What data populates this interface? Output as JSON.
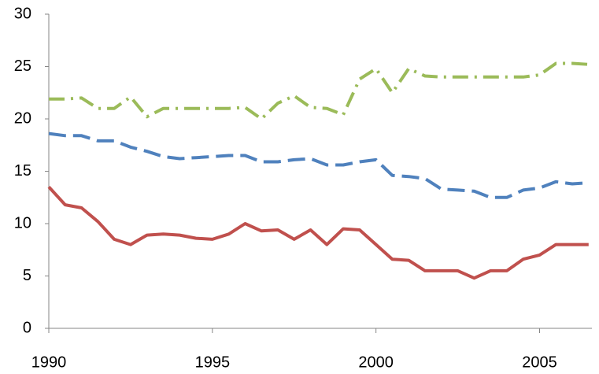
{
  "chart_data": {
    "type": "line",
    "x": [
      1990,
      1990.5,
      1991,
      1991.5,
      1992,
      1992.5,
      1993,
      1993.5,
      1994,
      1994.5,
      1995,
      1995.5,
      1996,
      1996.5,
      1997,
      1997.5,
      1998,
      1998.5,
      1999,
      1999.5,
      2000,
      2000.5,
      2001,
      2001.5,
      2002,
      2002.5,
      2003,
      2003.5,
      2004,
      2004.5,
      2005,
      2005.5,
      2006,
      2006.5
    ],
    "series": [
      {
        "color": "#c0504d",
        "values": [
          13.5,
          11.8,
          11.5,
          10.2,
          8.5,
          8.0,
          8.9,
          9.0,
          8.9,
          8.6,
          8.5,
          9.0,
          10.0,
          9.3,
          9.4,
          8.5,
          9.4,
          8.0,
          9.5,
          9.4,
          8.0,
          6.6,
          6.5,
          5.5,
          5.5,
          5.5,
          4.8,
          5.5,
          5.5,
          6.6,
          7.0,
          8.0,
          8.0,
          8.0
        ]
      },
      {
        "color": "#4f81bd",
        "values": [
          18.6,
          18.4,
          18.4,
          17.9,
          17.9,
          17.3,
          16.9,
          16.4,
          16.2,
          16.3,
          16.4,
          16.5,
          16.5,
          15.9,
          15.9,
          16.1,
          16.2,
          15.6,
          15.6,
          15.9,
          16.1,
          14.6,
          14.5,
          14.3,
          13.3,
          13.2,
          13.1,
          12.5,
          12.5,
          13.2,
          13.4,
          14.0,
          13.8,
          13.9
        ]
      },
      {
        "color": "#9bbb59",
        "values": [
          21.9,
          21.9,
          22.0,
          21.0,
          21.0,
          22.1,
          20.2,
          21.0,
          21.0,
          21.0,
          21.0,
          21.0,
          21.1,
          20.0,
          21.5,
          22.2,
          21.1,
          21.0,
          20.4,
          23.8,
          24.8,
          22.5,
          24.8,
          24.1,
          24.0,
          24.0,
          24.0,
          24.0,
          24.0,
          24.0,
          24.2,
          25.3,
          25.3,
          25.2
        ]
      }
    ],
    "xlim": [
      1990,
      2006.6
    ],
    "xticks": [
      1990,
      1995,
      2000,
      2005
    ],
    "ylim": [
      0,
      30
    ],
    "yticks": [
      0,
      5,
      10,
      15,
      20,
      25,
      30
    ],
    "grid": false
  }
}
